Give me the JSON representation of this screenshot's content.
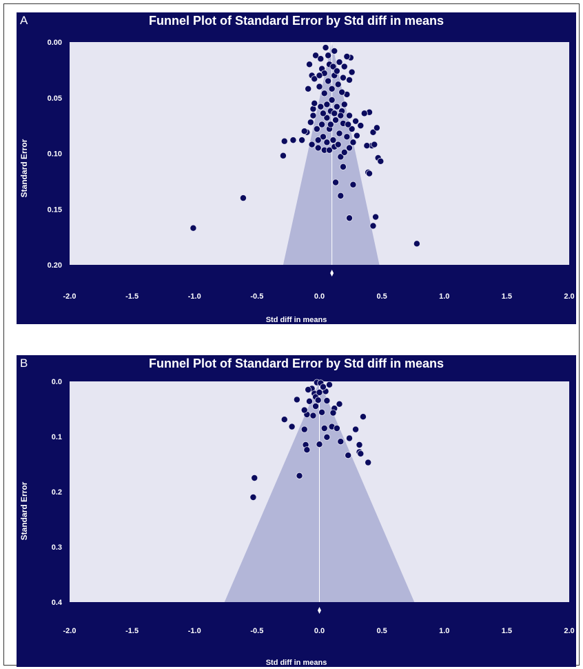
{
  "chart_data": [
    {
      "panel": "A",
      "type": "scatter",
      "title": "Funnel Plot of Standard Error by Std diff in means",
      "xlabel": "Std diff in means",
      "ylabel": "Standard Error",
      "xlim": [
        -2.0,
        2.0
      ],
      "ylim": [
        0.0,
        0.2
      ],
      "y_inverted": true,
      "xticks": [
        "-2.0",
        "-1.5",
        "-1.0",
        "-0.5",
        "0.0",
        "0.5",
        "1.0",
        "1.5",
        "2.0"
      ],
      "yticks": [
        "0.00",
        "0.05",
        "0.10",
        "0.15",
        "0.20"
      ],
      "pooled_estimate": 0.1,
      "funnel_base_x": [
        -0.29,
        0.48
      ],
      "points": [
        [
          -1.01,
          0.167
        ],
        [
          -0.61,
          0.14
        ],
        [
          0.78,
          0.181
        ],
        [
          0.24,
          0.158
        ],
        [
          0.45,
          0.157
        ],
        [
          0.43,
          0.165
        ],
        [
          0.17,
          0.138
        ],
        [
          0.13,
          0.126
        ],
        [
          0.27,
          0.128
        ],
        [
          0.19,
          0.112
        ],
        [
          0.39,
          0.117
        ],
        [
          0.4,
          0.118
        ],
        [
          0.47,
          0.104
        ],
        [
          0.49,
          0.107
        ],
        [
          0.17,
          0.103
        ],
        [
          0.42,
          0.093
        ],
        [
          0.44,
          0.092
        ],
        [
          0.38,
          0.093
        ],
        [
          0.43,
          0.081
        ],
        [
          0.46,
          0.077
        ],
        [
          0.4,
          0.063
        ],
        [
          0.36,
          0.064
        ],
        [
          0.29,
          0.071
        ],
        [
          0.33,
          0.075
        ],
        [
          -0.28,
          0.089
        ],
        [
          -0.29,
          0.102
        ],
        [
          -0.21,
          0.088
        ],
        [
          -0.14,
          0.088
        ],
        [
          -0.1,
          0.081
        ],
        [
          -0.06,
          0.092
        ],
        [
          -0.01,
          0.095
        ],
        [
          0.04,
          0.097
        ],
        [
          0.08,
          0.097
        ],
        [
          0.12,
          0.094
        ],
        [
          0.2,
          0.099
        ],
        [
          0.24,
          0.095
        ],
        [
          -0.09,
          0.042
        ],
        [
          -0.06,
          0.03
        ],
        [
          -0.05,
          0.06
        ],
        [
          -0.07,
          0.072
        ],
        [
          -0.03,
          0.012
        ],
        [
          0.05,
          0.005
        ],
        [
          0.12,
          0.008
        ],
        [
          0.25,
          0.014
        ],
        [
          0.22,
          0.013
        ],
        [
          0.26,
          0.027
        ],
        [
          0.24,
          0.034
        ],
        [
          0.22,
          0.047
        ],
        [
          0.16,
          0.018
        ],
        [
          0.2,
          0.022
        ],
        [
          0.08,
          0.02
        ],
        [
          0.02,
          0.024
        ],
        [
          -0.04,
          0.033
        ],
        [
          0.0,
          0.04
        ],
        [
          0.04,
          0.046
        ],
        [
          0.1,
          0.052
        ],
        [
          0.14,
          0.058
        ],
        [
          0.18,
          0.062
        ],
        [
          0.06,
          0.068
        ],
        [
          0.02,
          0.074
        ],
        [
          0.08,
          0.078
        ],
        [
          0.16,
          0.082
        ],
        [
          0.22,
          0.085
        ],
        [
          0.26,
          0.078
        ],
        [
          0.11,
          0.088
        ],
        [
          0.03,
          0.085
        ],
        [
          -0.02,
          0.078
        ],
        [
          0.13,
          0.07
        ],
        [
          0.19,
          0.073
        ],
        [
          0.09,
          0.062
        ],
        [
          -0.04,
          0.055
        ],
        [
          0.01,
          0.058
        ],
        [
          0.07,
          0.035
        ],
        [
          0.12,
          0.03
        ],
        [
          0.15,
          0.038
        ],
        [
          0.18,
          0.045
        ],
        [
          0.1,
          0.042
        ],
        [
          -0.08,
          0.02
        ],
        [
          0.01,
          0.015
        ],
        [
          0.04,
          0.028
        ],
        [
          0.06,
          0.056
        ],
        [
          0.12,
          0.064
        ],
        [
          0.2,
          0.056
        ],
        [
          0.24,
          0.066
        ],
        [
          0.3,
          0.084
        ],
        [
          -0.12,
          0.08
        ],
        [
          -0.01,
          0.088
        ],
        [
          0.06,
          0.09
        ],
        [
          0.15,
          0.092
        ],
        [
          0.27,
          0.09
        ],
        [
          0.09,
          0.074
        ],
        [
          0.17,
          0.066
        ],
        [
          0.23,
          0.074
        ],
        [
          0.03,
          0.064
        ],
        [
          -0.05,
          0.066
        ],
        [
          0.11,
          0.022
        ],
        [
          0.07,
          0.012
        ],
        [
          0.0,
          0.03
        ],
        [
          0.14,
          0.026
        ],
        [
          0.19,
          0.032
        ]
      ]
    },
    {
      "panel": "B",
      "type": "scatter",
      "title": "Funnel Plot of Standard Error by Std diff in means",
      "xlabel": "Std diff in means",
      "ylabel": "Standard Error",
      "xlim": [
        -2.0,
        2.0
      ],
      "ylim": [
        0.0,
        0.4
      ],
      "y_inverted": true,
      "xticks": [
        "-2.0",
        "-1.5",
        "-1.0",
        "-0.5",
        "0.0",
        "0.5",
        "1.0",
        "1.5",
        "2.0"
      ],
      "yticks": [
        "0.0",
        "0.1",
        "0.2",
        "0.3",
        "0.4"
      ],
      "pooled_estimate": 0.0,
      "funnel_base_x": [
        -0.76,
        0.76
      ],
      "points": [
        [
          -0.53,
          0.21
        ],
        [
          -0.52,
          0.175
        ],
        [
          -0.16,
          0.171
        ],
        [
          -0.28,
          0.069
        ],
        [
          -0.22,
          0.082
        ],
        [
          -0.18,
          0.033
        ],
        [
          -0.12,
          0.087
        ],
        [
          -0.11,
          0.115
        ],
        [
          -0.1,
          0.124
        ],
        [
          0.0,
          0.114
        ],
        [
          0.06,
          0.101
        ],
        [
          0.04,
          0.085
        ],
        [
          0.1,
          0.082
        ],
        [
          0.14,
          0.085
        ],
        [
          0.17,
          0.109
        ],
        [
          0.23,
          0.134
        ],
        [
          0.24,
          0.103
        ],
        [
          0.29,
          0.087
        ],
        [
          0.32,
          0.115
        ],
        [
          0.32,
          0.128
        ],
        [
          0.33,
          0.131
        ],
        [
          0.39,
          0.147
        ],
        [
          0.35,
          0.064
        ],
        [
          0.16,
          0.041
        ],
        [
          0.12,
          0.049
        ],
        [
          0.11,
          0.057
        ],
        [
          0.08,
          0.006
        ],
        [
          0.05,
          0.018
        ],
        [
          -0.02,
          0.002
        ],
        [
          0.01,
          0.003
        ],
        [
          -0.06,
          0.013
        ],
        [
          -0.04,
          0.022
        ],
        [
          -0.08,
          0.036
        ],
        [
          -0.03,
          0.045
        ],
        [
          -0.05,
          0.062
        ],
        [
          0.02,
          0.056
        ],
        [
          -0.1,
          0.06
        ],
        [
          -0.12,
          0.052
        ],
        [
          -0.03,
          0.028
        ],
        [
          0.03,
          0.01
        ],
        [
          -0.01,
          0.034
        ],
        [
          0.0,
          0.02
        ],
        [
          -0.09,
          0.015
        ],
        [
          0.06,
          0.035
        ]
      ]
    }
  ]
}
